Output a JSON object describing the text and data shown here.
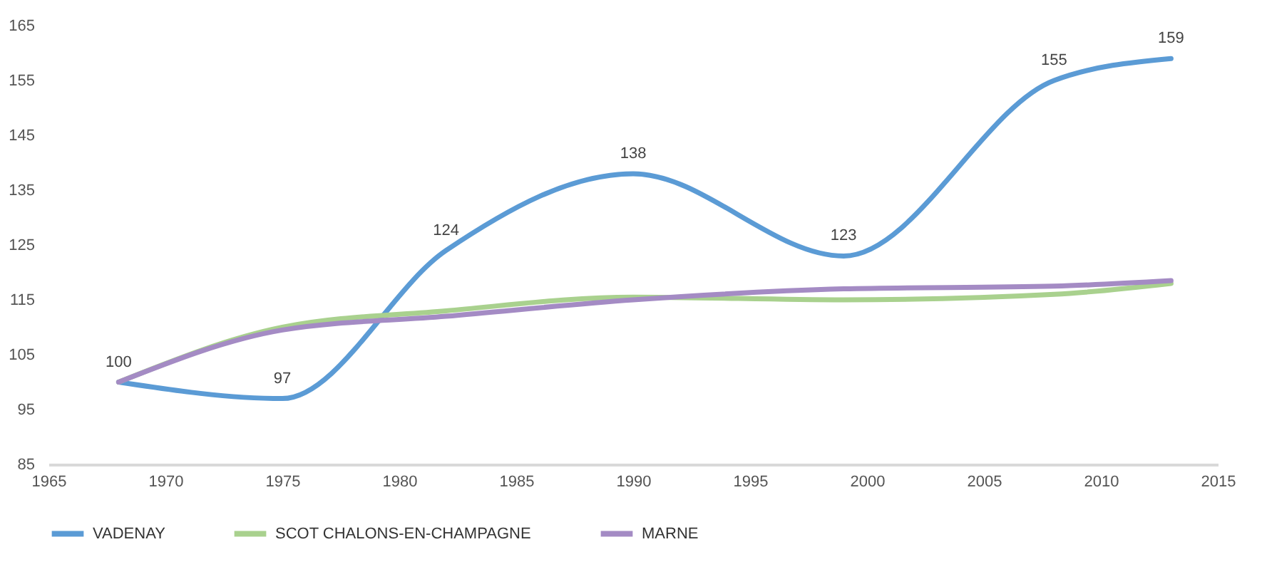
{
  "chart_data": {
    "type": "line",
    "x": [
      1968,
      1975,
      1982,
      1990,
      1999,
      2008,
      2013
    ],
    "series": [
      {
        "name": "VADENAY",
        "color": "#5b9bd5",
        "values": [
          100,
          97,
          124,
          138,
          123,
          155,
          159
        ],
        "value_labels": [
          "100",
          "97",
          "124",
          "138",
          "123",
          "155",
          "159"
        ]
      },
      {
        "name": "SCOT CHALONS-EN-CHAMPAGNE",
        "color": "#a9d18e",
        "values": [
          100,
          110,
          113,
          115.5,
          115,
          116,
          118
        ]
      },
      {
        "name": "MARNE",
        "color": "#a48bc4",
        "values": [
          100,
          109.5,
          112,
          115,
          117,
          117.5,
          118.5
        ]
      }
    ],
    "xlim": [
      1965,
      2015
    ],
    "xticks": [
      1965,
      1970,
      1975,
      1980,
      1985,
      1990,
      1995,
      2000,
      2005,
      2010,
      2015
    ],
    "ylim": [
      85,
      165
    ],
    "yticks": [
      85,
      95,
      105,
      115,
      125,
      135,
      145,
      155,
      165
    ],
    "grid": false,
    "legend": "bottom",
    "marker": "none",
    "line_style": "solid"
  }
}
